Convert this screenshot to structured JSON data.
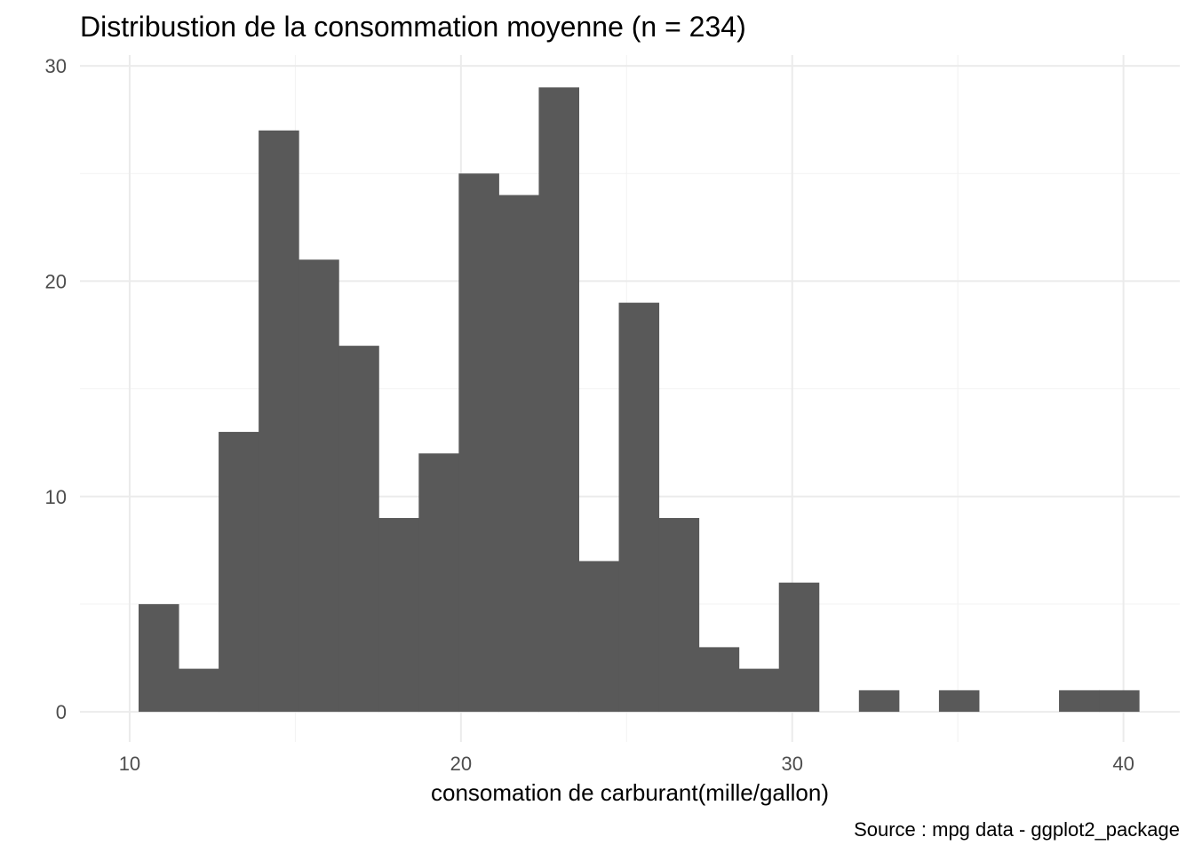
{
  "chart_data": {
    "type": "bar",
    "title": "Distribustion de la consommation moyenne (n = 234)",
    "xlabel": "consomation de carburant(mille/gallon)",
    "ylabel": "",
    "caption": "Source : mpg data - ggplot2_package",
    "xlim": [
      8.5,
      41.7
    ],
    "ylim": [
      -1.4,
      30.5
    ],
    "x_ticks": [
      10,
      20,
      30,
      40
    ],
    "x_tick_labels": [
      "10",
      "20",
      "30",
      "40"
    ],
    "y_ticks": [
      0,
      10,
      20,
      30
    ],
    "y_tick_labels": [
      "0",
      "10",
      "20",
      "30"
    ],
    "grid": true,
    "bin_start": 10.27,
    "bin_width": 1.208,
    "values": [
      5,
      2,
      13,
      27,
      21,
      17,
      9,
      12,
      25,
      24,
      29,
      7,
      19,
      9,
      3,
      2,
      6,
      0,
      1,
      0,
      1,
      0,
      0,
      1,
      1
    ],
    "bar_color": "#595959"
  }
}
